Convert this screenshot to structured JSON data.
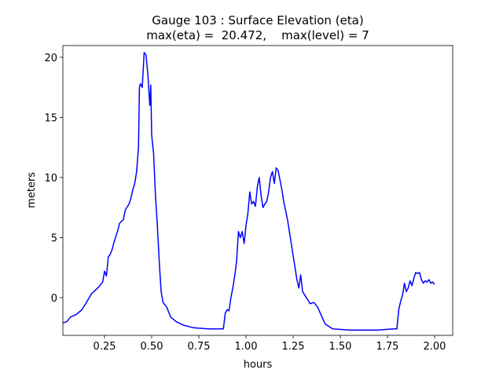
{
  "chart_data": {
    "type": "line",
    "title": "Gauge 103 : Surface Elevation (eta)",
    "subtitle": "max(eta) =  20.472,    max(level) = 7",
    "xlabel": "hours",
    "ylabel": "meters",
    "xlim": [
      0.029,
      2.096
    ],
    "ylim": [
      -3.14,
      20.98
    ],
    "xticks": [
      0.25,
      {
        "value": 0.5,
        "label": "0.50"
      },
      0.75,
      {
        "value": 1.0,
        "label": "1.00"
      },
      1.25,
      {
        "value": 1.5,
        "label": "1.50"
      },
      1.75,
      {
        "value": 2.0,
        "label": "2.00"
      }
    ],
    "yticks": [
      0,
      5,
      10,
      15,
      20
    ],
    "grid": false,
    "x": [
      0.03,
      0.05,
      0.07,
      0.1,
      0.13,
      0.15,
      0.18,
      0.2,
      0.22,
      0.24,
      0.25,
      0.26,
      0.27,
      0.28,
      0.29,
      0.3,
      0.32,
      0.33,
      0.35,
      0.36,
      0.38,
      0.39,
      0.4,
      0.41,
      0.42,
      0.43,
      0.435,
      0.44,
      0.45,
      0.46,
      0.47,
      0.48,
      0.49,
      0.495,
      0.5,
      0.51,
      0.52,
      0.53,
      0.54,
      0.55,
      0.56,
      0.58,
      0.6,
      0.63,
      0.67,
      0.72,
      0.8,
      0.88,
      0.89,
      0.9,
      0.91,
      0.92,
      0.93,
      0.94,
      0.95,
      0.96,
      0.97,
      0.98,
      0.99,
      1.0,
      1.01,
      1.02,
      1.03,
      1.04,
      1.05,
      1.06,
      1.07,
      1.08,
      1.09,
      1.1,
      1.11,
      1.12,
      1.13,
      1.14,
      1.15,
      1.16,
      1.17,
      1.18,
      1.19,
      1.2,
      1.22,
      1.24,
      1.26,
      1.27,
      1.28,
      1.29,
      1.3,
      1.32,
      1.34,
      1.36,
      1.38,
      1.4,
      1.42,
      1.46,
      1.55,
      1.7,
      1.78,
      1.8,
      1.81,
      1.82,
      1.83,
      1.84,
      1.85,
      1.86,
      1.87,
      1.88,
      1.89,
      1.9,
      1.91,
      1.92,
      1.93,
      1.94,
      1.95,
      1.96,
      1.97,
      1.98,
      1.99,
      2.0
    ],
    "series": [
      {
        "name": "eta",
        "color": "blue",
        "values": [
          -2.1,
          -2.0,
          -1.6,
          -1.4,
          -1.0,
          -0.5,
          0.3,
          0.6,
          0.9,
          1.3,
          2.2,
          1.8,
          3.4,
          3.6,
          4.0,
          4.6,
          5.6,
          6.2,
          6.5,
          7.3,
          7.8,
          8.3,
          9.0,
          9.5,
          10.5,
          12.5,
          17.5,
          17.8,
          17.5,
          20.4,
          20.2,
          18.5,
          16.0,
          17.7,
          13.5,
          12.0,
          8.5,
          6.0,
          3.0,
          0.5,
          -0.4,
          -0.8,
          -1.6,
          -2.0,
          -2.3,
          -2.5,
          -2.6,
          -2.6,
          -1.3,
          -1.0,
          -1.1,
          0.0,
          0.8,
          1.8,
          3.0,
          5.5,
          5.0,
          5.5,
          4.5,
          6.0,
          7.0,
          8.8,
          7.8,
          8.0,
          7.6,
          9.2,
          10.0,
          8.5,
          7.5,
          7.8,
          8.0,
          8.8,
          10.0,
          10.5,
          9.5,
          10.8,
          10.6,
          9.8,
          9.0,
          8.0,
          6.5,
          4.5,
          2.5,
          1.5,
          0.8,
          1.9,
          0.5,
          0.0,
          -0.5,
          -0.4,
          -0.8,
          -1.5,
          -2.2,
          -2.6,
          -2.7,
          -2.7,
          -2.6,
          -2.6,
          -1.0,
          -0.3,
          0.2,
          1.2,
          0.5,
          0.8,
          1.4,
          1.0,
          1.6,
          2.1,
          2.0,
          2.1,
          1.5,
          1.2,
          1.4,
          1.3,
          1.5,
          1.2,
          1.3,
          1.1
        ]
      }
    ]
  }
}
